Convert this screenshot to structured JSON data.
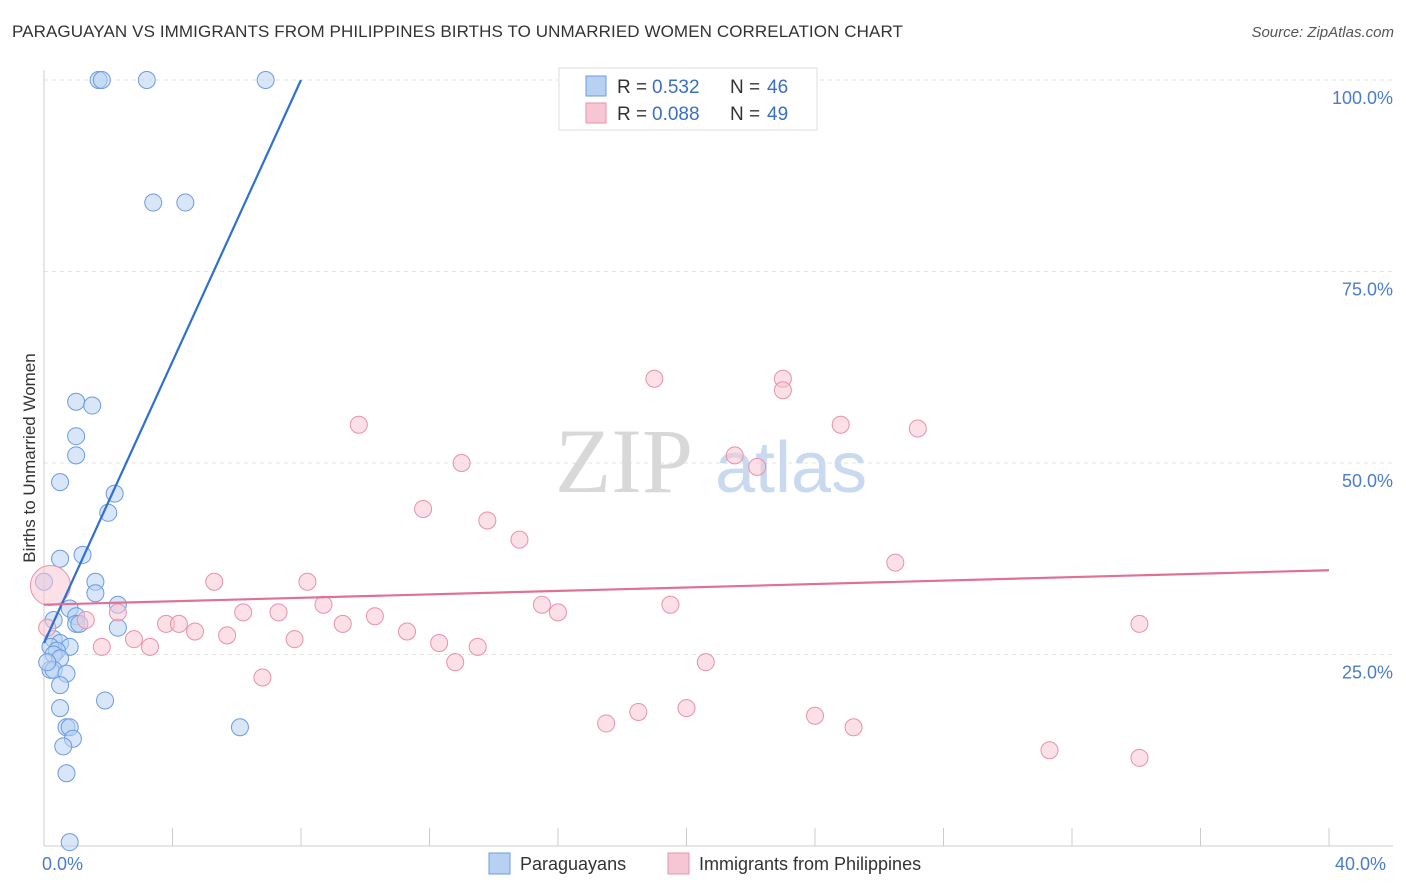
{
  "title": "PARAGUAYAN VS IMMIGRANTS FROM PHILIPPINES BIRTHS TO UNMARRIED WOMEN CORRELATION CHART",
  "source": "Source: ZipAtlas.com",
  "watermark": {
    "zip": "ZIP",
    "atlas": "atlas"
  },
  "chart_data": {
    "type": "scatter",
    "ylabel": "Births to Unmarried Women",
    "xlim": [
      0,
      40
    ],
    "ylim": [
      0,
      100
    ],
    "x_tick_labels": [
      {
        "value": 0,
        "label": "0.0%"
      },
      {
        "value": 40,
        "label": "40.0%"
      }
    ],
    "y_tick_labels": [
      {
        "value": 25,
        "label": "25.0%"
      },
      {
        "value": 50,
        "label": "50.0%"
      },
      {
        "value": 75,
        "label": "75.0%"
      },
      {
        "value": 100,
        "label": "100.0%"
      }
    ],
    "legend": [
      {
        "r_label": "R =",
        "r_value": "0.532",
        "n_label": "N =",
        "n_value": "46"
      },
      {
        "r_label": "R =",
        "r_value": "0.088",
        "n_label": "N =",
        "n_value": "49"
      }
    ],
    "series": [
      {
        "name": "Paraguayans",
        "color": "#6a9be0",
        "fill": "#b8d1f3",
        "trend": {
          "x0": 0.0,
          "y0": 26.5,
          "x1": 8.0,
          "y1": 100.0
        },
        "points": [
          [
            1.7,
            100
          ],
          [
            1.8,
            100
          ],
          [
            3.2,
            100
          ],
          [
            6.9,
            100
          ],
          [
            3.4,
            84
          ],
          [
            4.4,
            84
          ],
          [
            1.0,
            58
          ],
          [
            1.5,
            57.5
          ],
          [
            1.0,
            53.5
          ],
          [
            1.0,
            51
          ],
          [
            0.5,
            47.5
          ],
          [
            2.2,
            46
          ],
          [
            2.0,
            43.5
          ],
          [
            1.2,
            38
          ],
          [
            0.5,
            37.5
          ],
          [
            0.0,
            34.5
          ],
          [
            1.6,
            34.5
          ],
          [
            1.6,
            33
          ],
          [
            2.3,
            31.5
          ],
          [
            0.8,
            31
          ],
          [
            1.0,
            30
          ],
          [
            0.3,
            29.5
          ],
          [
            1.0,
            29
          ],
          [
            1.1,
            29
          ],
          [
            2.3,
            28.5
          ],
          [
            0.3,
            27
          ],
          [
            0.5,
            26.5
          ],
          [
            0.2,
            26
          ],
          [
            0.8,
            26
          ],
          [
            0.4,
            25.5
          ],
          [
            0.3,
            25
          ],
          [
            0.5,
            24.5
          ],
          [
            0.2,
            23
          ],
          [
            0.3,
            23
          ],
          [
            0.7,
            22.5
          ],
          [
            0.5,
            21
          ],
          [
            1.9,
            19
          ],
          [
            0.5,
            18
          ],
          [
            0.7,
            15.5
          ],
          [
            0.8,
            15.5
          ],
          [
            6.1,
            15.5
          ],
          [
            0.9,
            14
          ],
          [
            0.6,
            13
          ],
          [
            0.7,
            9.5
          ],
          [
            0.8,
            0.5
          ],
          [
            0.1,
            24
          ]
        ]
      },
      {
        "name": "Immigrants from Philippines",
        "color": "#e891ab",
        "fill": "#f7c6d4",
        "trend": {
          "x0": 0.0,
          "y0": 31.5,
          "x1": 40.0,
          "y1": 36.0
        },
        "points": [
          [
            0.2,
            34
          ],
          [
            0.1,
            28.5
          ],
          [
            1.3,
            29.5
          ],
          [
            1.8,
            26
          ],
          [
            2.3,
            30.5
          ],
          [
            2.8,
            27
          ],
          [
            3.3,
            26
          ],
          [
            3.8,
            29
          ],
          [
            4.2,
            29
          ],
          [
            4.7,
            28
          ],
          [
            5.3,
            34.5
          ],
          [
            5.7,
            27.5
          ],
          [
            6.2,
            30.5
          ],
          [
            6.8,
            22
          ],
          [
            7.3,
            30.5
          ],
          [
            7.8,
            27
          ],
          [
            8.2,
            34.5
          ],
          [
            8.7,
            31.5
          ],
          [
            9.3,
            29
          ],
          [
            9.8,
            55
          ],
          [
            10.3,
            30
          ],
          [
            11.3,
            28
          ],
          [
            11.8,
            44
          ],
          [
            12.3,
            26.5
          ],
          [
            12.8,
            24
          ],
          [
            13.0,
            50
          ],
          [
            13.5,
            26
          ],
          [
            13.8,
            42.5
          ],
          [
            14.8,
            40
          ],
          [
            15.5,
            31.5
          ],
          [
            16.0,
            30.5
          ],
          [
            17.5,
            16
          ],
          [
            18.5,
            17.5
          ],
          [
            19.0,
            61
          ],
          [
            19.5,
            31.5
          ],
          [
            20.0,
            18
          ],
          [
            20.6,
            24
          ],
          [
            21.5,
            51
          ],
          [
            22.2,
            49.5
          ],
          [
            23.0,
            61
          ],
          [
            23.0,
            59.5
          ],
          [
            24.0,
            17
          ],
          [
            24.8,
            55
          ],
          [
            25.2,
            15.5
          ],
          [
            26.5,
            37
          ],
          [
            27.2,
            54.5
          ],
          [
            31.3,
            12.5
          ],
          [
            34.1,
            29
          ],
          [
            34.1,
            11.5
          ]
        ]
      }
    ]
  }
}
